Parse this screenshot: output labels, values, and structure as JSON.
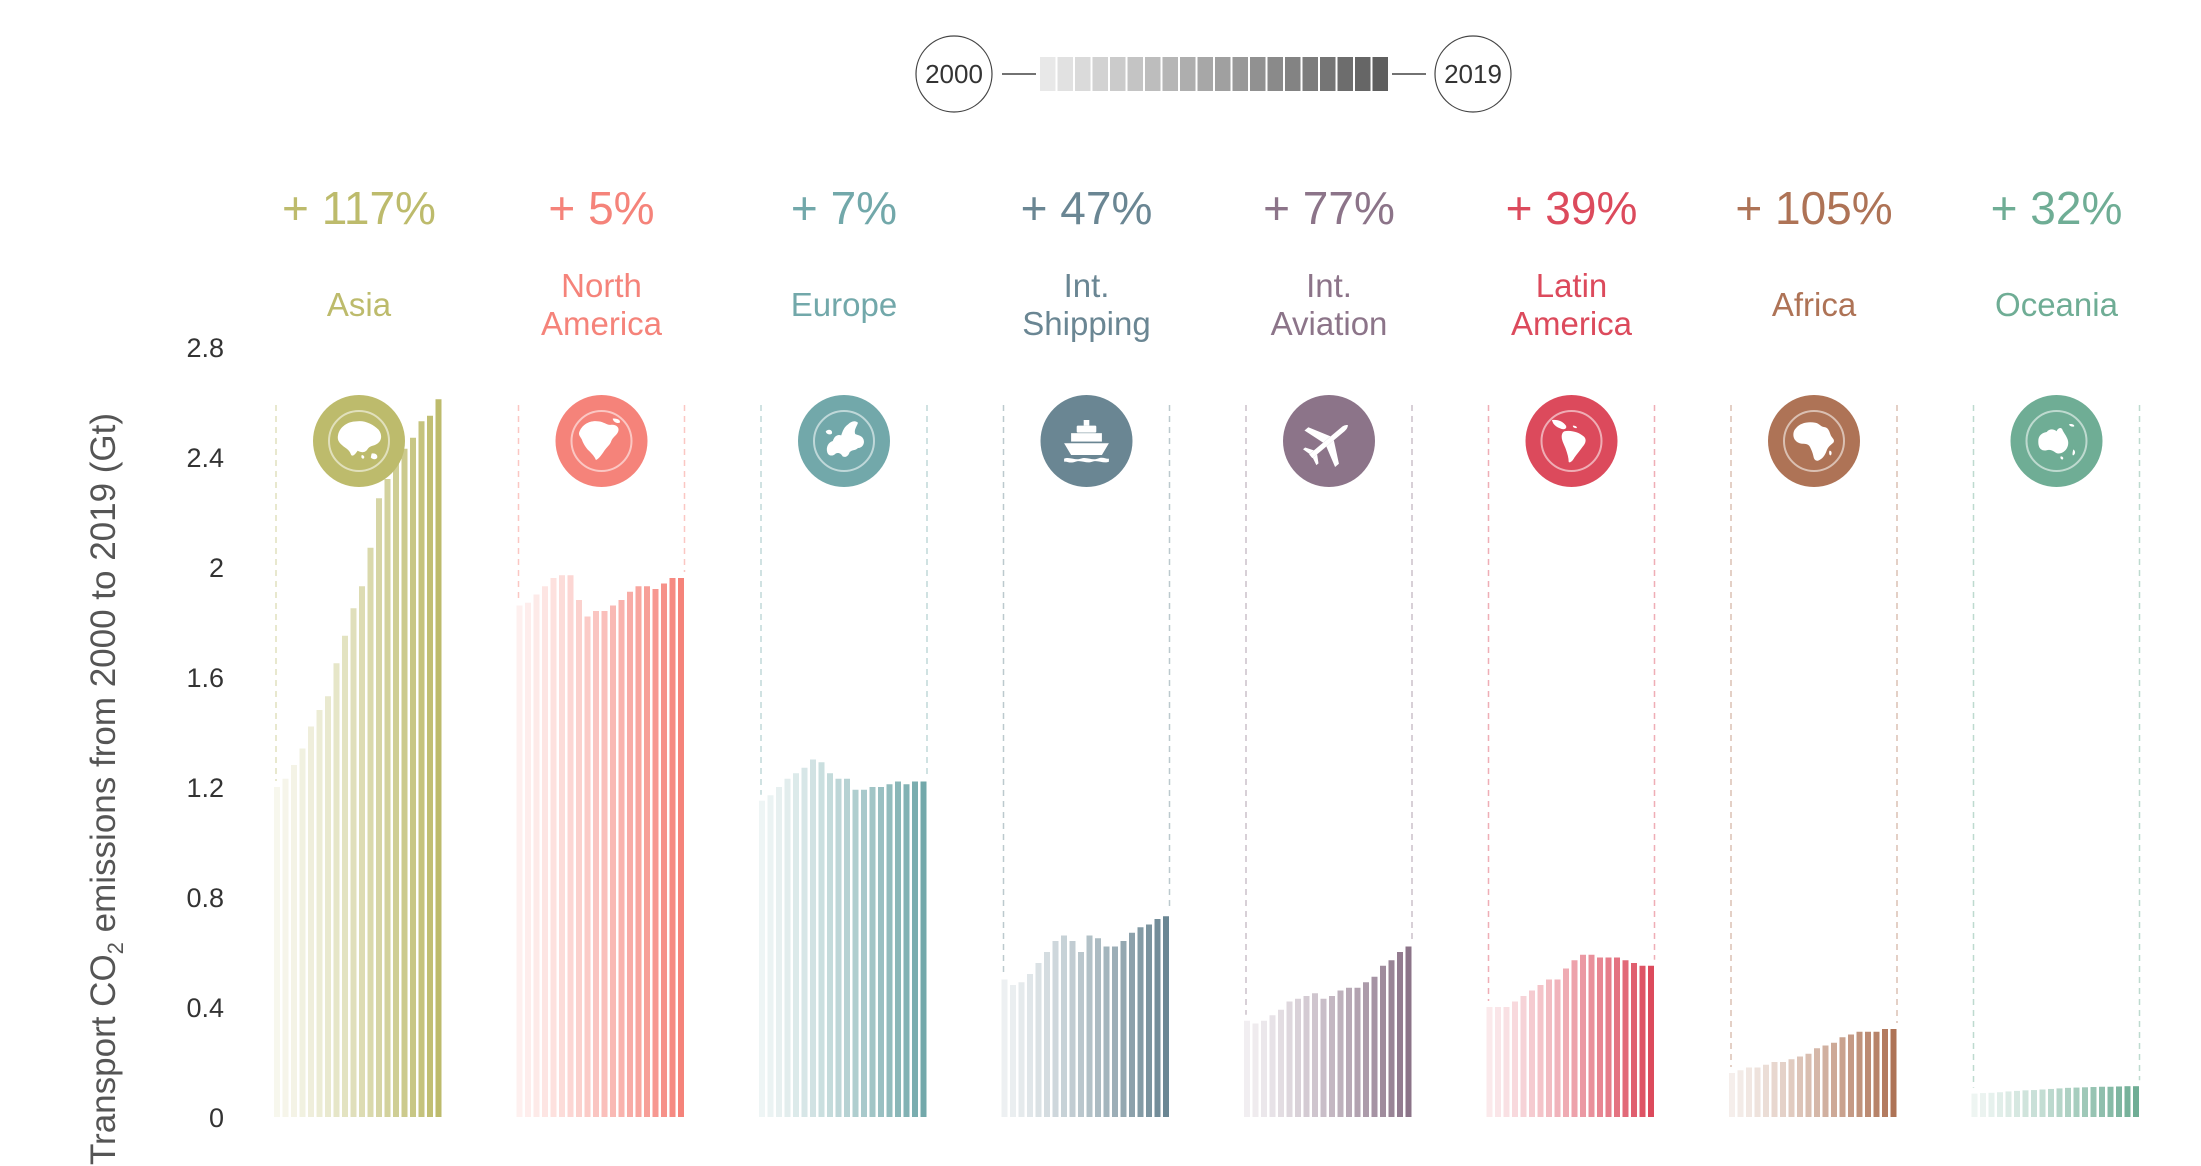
{
  "chart_data": {
    "type": "bar",
    "ylabel": "Transport CO2 emissions from 2000 to 2019 (Gt)",
    "ylabel_parts": {
      "before": "Transport CO",
      "subscript": "2",
      "after": " emissions from 2000 to 2019 (Gt)"
    },
    "ylim": [
      0,
      2.8
    ],
    "yticks": [
      "0",
      "0.4",
      "0.8",
      "1.2",
      "1.6",
      "2",
      "2.4",
      "2.8"
    ],
    "grid": false,
    "legend": {
      "placement": "top-center",
      "start_label": "2000",
      "end_label": "2019",
      "steps": 20
    },
    "years": [
      2000,
      2001,
      2002,
      2003,
      2004,
      2005,
      2006,
      2007,
      2008,
      2009,
      2010,
      2011,
      2012,
      2013,
      2014,
      2015,
      2016,
      2017,
      2018,
      2019
    ],
    "series": [
      {
        "name": "Asia",
        "change": "+ 117%",
        "icon": "asia-globe-icon",
        "color": "#bdbb6c",
        "values": [
          1.2,
          1.23,
          1.28,
          1.34,
          1.42,
          1.48,
          1.53,
          1.65,
          1.75,
          1.85,
          1.93,
          2.07,
          2.25,
          2.32,
          2.38,
          2.43,
          2.47,
          2.53,
          2.55,
          2.61
        ]
      },
      {
        "name": "North\nAmerica",
        "change": "+ 5%",
        "icon": "north-america-globe-icon",
        "color": "#f5837a",
        "values": [
          1.86,
          1.87,
          1.9,
          1.93,
          1.96,
          1.97,
          1.97,
          1.88,
          1.82,
          1.84,
          1.84,
          1.86,
          1.88,
          1.91,
          1.93,
          1.93,
          1.92,
          1.94,
          1.96,
          1.96
        ]
      },
      {
        "name": "Europe",
        "change": "+ 7%",
        "icon": "europe-globe-icon",
        "color": "#72a8aa",
        "values": [
          1.15,
          1.17,
          1.2,
          1.23,
          1.25,
          1.27,
          1.3,
          1.29,
          1.25,
          1.23,
          1.23,
          1.19,
          1.19,
          1.2,
          1.2,
          1.21,
          1.22,
          1.21,
          1.22,
          1.22
        ]
      },
      {
        "name": "Int.\nShipping",
        "change": "+ 47%",
        "icon": "ship-icon",
        "color": "#6a8693",
        "values": [
          0.5,
          0.48,
          0.49,
          0.52,
          0.56,
          0.6,
          0.64,
          0.66,
          0.64,
          0.6,
          0.66,
          0.65,
          0.62,
          0.62,
          0.64,
          0.67,
          0.69,
          0.7,
          0.72,
          0.73
        ]
      },
      {
        "name": "Int.\nAviation",
        "change": "+ 77%",
        "icon": "airplane-icon",
        "color": "#8c7489",
        "values": [
          0.35,
          0.34,
          0.35,
          0.37,
          0.39,
          0.42,
          0.43,
          0.44,
          0.45,
          0.43,
          0.44,
          0.46,
          0.47,
          0.47,
          0.49,
          0.51,
          0.55,
          0.57,
          0.6,
          0.62
        ]
      },
      {
        "name": "Latin\nAmerica",
        "change": "+ 39%",
        "icon": "latin-america-globe-icon",
        "color": "#dc4a5c",
        "values": [
          0.4,
          0.4,
          0.4,
          0.42,
          0.44,
          0.46,
          0.48,
          0.5,
          0.5,
          0.54,
          0.57,
          0.59,
          0.59,
          0.58,
          0.58,
          0.58,
          0.57,
          0.56,
          0.55,
          0.55
        ]
      },
      {
        "name": "Africa",
        "change": "+ 105%",
        "icon": "africa-globe-icon",
        "color": "#ae7356",
        "values": [
          0.16,
          0.17,
          0.18,
          0.18,
          0.19,
          0.2,
          0.2,
          0.21,
          0.22,
          0.23,
          0.25,
          0.26,
          0.27,
          0.29,
          0.3,
          0.31,
          0.31,
          0.31,
          0.32,
          0.32
        ]
      },
      {
        "name": "Oceania",
        "change": "+ 32%",
        "icon": "oceania-globe-icon",
        "color": "#6fad95",
        "values": [
          0.085,
          0.087,
          0.088,
          0.09,
          0.093,
          0.095,
          0.097,
          0.098,
          0.1,
          0.102,
          0.104,
          0.106,
          0.107,
          0.108,
          0.109,
          0.11,
          0.11,
          0.111,
          0.112,
          0.112
        ]
      }
    ]
  }
}
